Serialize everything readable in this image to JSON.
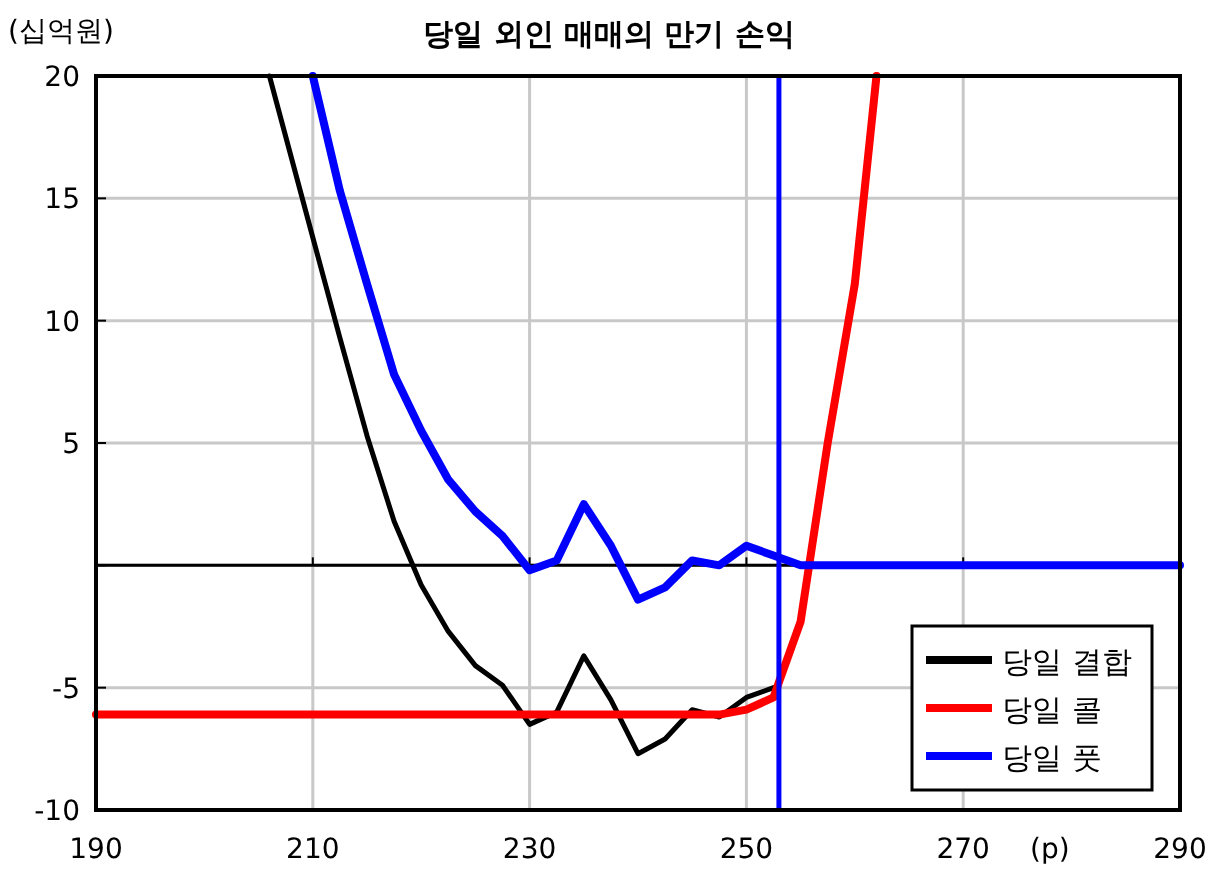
{
  "chart_data": {
    "type": "line",
    "title": "당일 외인 매매의 만기 손익",
    "ylabel": "(십억원)",
    "xlabel": "(p)",
    "xlim": [
      190,
      290
    ],
    "xticks": [
      190,
      210,
      230,
      250,
      270,
      290
    ],
    "ylim": [
      -10,
      20
    ],
    "yticks": [
      -10,
      -5,
      {
        "value": 0,
        "label": null
      },
      5,
      10,
      15,
      20
    ],
    "grid": true,
    "legend": "bottom right",
    "marker": "none",
    "line_style": "solid",
    "series": [
      {
        "name": "당일 결합",
        "color": "#000000",
        "x": [
          206,
          210,
          212.5,
          215,
          217.5,
          220,
          222.5,
          225,
          227.5,
          230,
          232.5,
          235,
          237.5,
          240,
          242.5,
          245,
          247.5,
          250,
          252.5
        ],
        "values": [
          20,
          13.4,
          9.3,
          5.3,
          1.8,
          -0.8,
          -2.7,
          -4.1,
          -4.9,
          -6.5,
          -6.0,
          -3.7,
          -5.5,
          -7.7,
          -7.1,
          -5.9,
          -6.2,
          -5.4,
          -5.0
        ]
      },
      {
        "name": "당일 콜",
        "color": "#ff0000",
        "x": [
          190,
          247.5,
          250,
          252.5,
          255,
          257.5,
          260,
          262
        ],
        "values": [
          -6.1,
          -6.1,
          -5.9,
          -5.4,
          -2.3,
          5,
          11.5,
          20
        ]
      },
      {
        "name": "당일 풋",
        "color": "#0000ff",
        "x": [
          210,
          212.5,
          215,
          217.5,
          220,
          222.5,
          225,
          227.5,
          230,
          232.5,
          235,
          237.5,
          240,
          242.5,
          245,
          247.5,
          250,
          252.5,
          255,
          290
        ],
        "values": [
          20,
          15.3,
          11.5,
          7.8,
          5.5,
          3.5,
          2.2,
          1.2,
          -0.2,
          0.2,
          2.5,
          0.8,
          -1.4,
          -0.9,
          0.2,
          0,
          0.8,
          0.4,
          0,
          0
        ]
      }
    ],
    "ref_lines": [
      {
        "axis": "y",
        "value": 0,
        "color": "#000000"
      },
      {
        "axis": "x",
        "value": 253,
        "color": "#0000ff"
      }
    ]
  }
}
